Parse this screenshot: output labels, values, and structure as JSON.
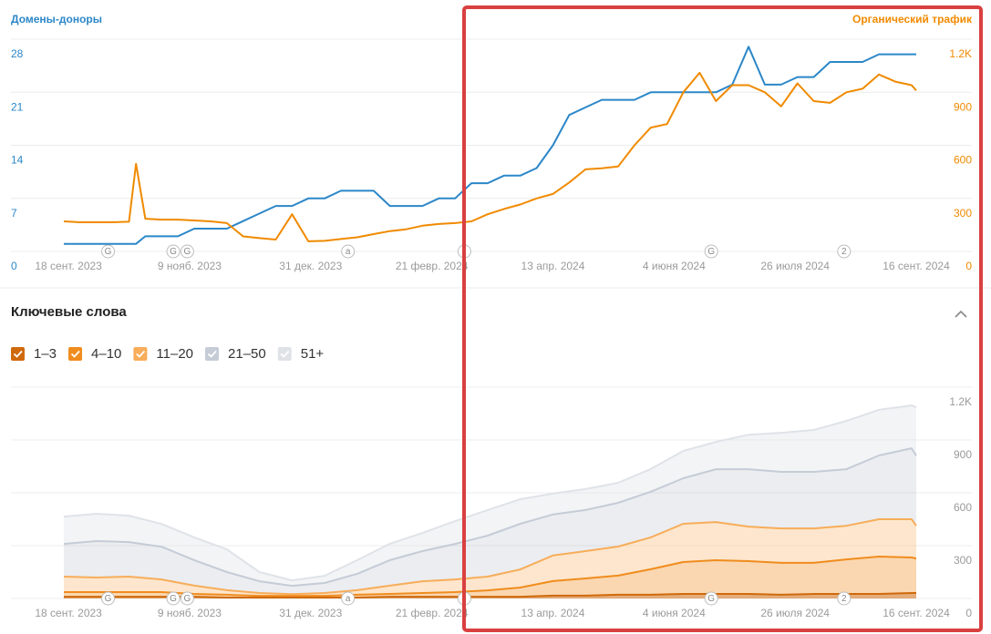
{
  "chart_data": [
    {
      "type": "line",
      "ylabel": "Домены-доноры",
      "y2label": "Органический трафик",
      "x": [
        "2023-09-16",
        "2023-09-23",
        "2023-09-30",
        "2023-10-07",
        "2023-10-14",
        "2023-10-17",
        "2023-10-21",
        "2023-10-28",
        "2023-11-04",
        "2023-11-11",
        "2023-11-18",
        "2023-11-25",
        "2023-12-02",
        "2023-12-09",
        "2023-12-16",
        "2023-12-23",
        "2023-12-30",
        "2024-01-06",
        "2024-01-13",
        "2024-01-20",
        "2024-01-27",
        "2024-02-03",
        "2024-02-10",
        "2024-02-17",
        "2024-02-24",
        "2024-03-02",
        "2024-03-09",
        "2024-03-16",
        "2024-03-23",
        "2024-03-30",
        "2024-04-06",
        "2024-04-13",
        "2024-04-20",
        "2024-04-27",
        "2024-05-04",
        "2024-05-11",
        "2024-05-18",
        "2024-05-25",
        "2024-06-01",
        "2024-06-08",
        "2024-06-15",
        "2024-06-22",
        "2024-06-29",
        "2024-07-06",
        "2024-07-13",
        "2024-07-20",
        "2024-07-27",
        "2024-08-03",
        "2024-08-10",
        "2024-08-17",
        "2024-08-24",
        "2024-08-31",
        "2024-09-07",
        "2024-09-14",
        "2024-09-16"
      ],
      "xlim": [
        "2023-09-16",
        "2024-09-16"
      ],
      "xticks": [
        {
          "value": "2023-09-18",
          "label": "18 сент. 2023"
        },
        {
          "value": "2023-11-09",
          "label": "9 нояб. 2023"
        },
        {
          "value": "2023-12-31",
          "label": "31 дек. 2023"
        },
        {
          "value": "2024-02-21",
          "label": "21 февр. 2024"
        },
        {
          "value": "2024-04-13",
          "label": "13 апр. 2024"
        },
        {
          "value": "2024-06-04",
          "label": "4 июня 2024"
        },
        {
          "value": "2024-07-26",
          "label": "26 июля 2024"
        },
        {
          "value": "2024-09-16",
          "label": "16 сент. 2024"
        }
      ],
      "ylim": [
        0,
        28
      ],
      "yticks": [
        0,
        7,
        14,
        21,
        28
      ],
      "y2lim": [
        0,
        1200
      ],
      "y2ticks": [
        0,
        300,
        600,
        900,
        {
          "value": 1200,
          "label": "1.2K"
        }
      ],
      "grid": true,
      "series": [
        {
          "name": "Домены-доноры",
          "color": "#2b87c8",
          "axis": "y",
          "values": [
            1,
            1,
            1,
            1,
            1,
            1,
            2,
            2,
            2,
            3,
            3,
            3,
            4,
            5,
            6,
            6,
            7,
            7,
            8,
            8,
            8,
            6,
            6,
            6,
            7,
            7,
            9,
            9,
            10,
            10,
            11,
            14,
            18,
            19,
            20,
            20,
            20,
            21,
            21,
            21,
            21,
            21,
            22,
            27,
            22,
            22,
            23,
            23,
            25,
            25,
            25,
            26,
            26,
            26,
            26
          ]
        },
        {
          "name": "Органический трафик",
          "color": "#f08a00",
          "axis": "y2",
          "values": [
            170,
            165,
            165,
            165,
            168,
            495,
            185,
            180,
            180,
            175,
            170,
            160,
            85,
            75,
            67,
            210,
            57,
            60,
            70,
            80,
            98,
            115,
            125,
            145,
            155,
            160,
            170,
            210,
            240,
            265,
            300,
            325,
            390,
            464,
            470,
            480,
            600,
            700,
            720,
            900,
            1010,
            850,
            940,
            940,
            900,
            820,
            950,
            850,
            840,
            900,
            920,
            1000,
            960,
            940,
            910
          ]
        }
      ],
      "events": [
        {
          "x": "2023-10-05",
          "label": "G"
        },
        {
          "x": "2023-11-02",
          "label": "G"
        },
        {
          "x": "2023-11-08",
          "label": "G"
        },
        {
          "x": "2024-01-16",
          "label": "a"
        },
        {
          "x": "2024-03-06"
        },
        {
          "x": "2024-06-20",
          "label": "G"
        },
        {
          "x": "2024-08-16",
          "label": "2"
        }
      ]
    },
    {
      "type": "area",
      "stacked": true,
      "title": "Ключевые слова",
      "x": [
        "2023-09-16",
        "2023-09-30",
        "2023-10-14",
        "2023-10-28",
        "2023-11-11",
        "2023-11-25",
        "2023-12-09",
        "2023-12-23",
        "2024-01-06",
        "2024-01-20",
        "2024-02-03",
        "2024-02-17",
        "2024-03-02",
        "2024-03-16",
        "2024-03-30",
        "2024-04-13",
        "2024-04-27",
        "2024-05-11",
        "2024-05-25",
        "2024-06-08",
        "2024-06-22",
        "2024-07-06",
        "2024-07-20",
        "2024-08-03",
        "2024-08-17",
        "2024-08-31",
        "2024-09-14",
        "2024-09-16"
      ],
      "xlim": [
        "2023-09-16",
        "2024-09-16"
      ],
      "xticks": [
        {
          "value": "2023-09-18",
          "label": "18 сент. 2023"
        },
        {
          "value": "2023-11-09",
          "label": "9 нояб. 2023"
        },
        {
          "value": "2023-12-31",
          "label": "31 дек. 2023"
        },
        {
          "value": "2024-02-21",
          "label": "21 февр. 2024"
        },
        {
          "value": "2024-04-13",
          "label": "13 апр. 2024"
        },
        {
          "value": "2024-06-04",
          "label": "4 июня 2024"
        },
        {
          "value": "2024-07-26",
          "label": "26 июля 2024"
        },
        {
          "value": "2024-09-16",
          "label": "16 сент. 2024"
        }
      ],
      "ylim": [
        0,
        1200
      ],
      "yticks": [
        0,
        300,
        600,
        900,
        {
          "value": 1200,
          "label": "1.2K"
        }
      ],
      "grid": true,
      "series": [
        {
          "name": "1–3",
          "color": "#cf6a0c",
          "values": [
            10,
            10,
            10,
            10,
            10,
            5,
            5,
            5,
            5,
            5,
            10,
            10,
            10,
            10,
            10,
            16,
            16,
            21,
            21,
            26,
            26,
            26,
            21,
            26,
            26,
            26,
            31,
            31
          ]
        },
        {
          "name": "4–10",
          "color": "#f08c1e",
          "values": [
            26,
            26,
            26,
            26,
            16,
            16,
            10,
            10,
            10,
            16,
            16,
            21,
            26,
            36,
            52,
            83,
            98,
            109,
            145,
            181,
            191,
            186,
            181,
            176,
            196,
            212,
            202,
            196
          ]
        },
        {
          "name": "11–20",
          "color": "#f7ad5a",
          "values": [
            88,
            83,
            88,
            72,
            47,
            26,
            16,
            10,
            16,
            26,
            47,
            67,
            72,
            78,
            103,
            145,
            155,
            165,
            181,
            217,
            217,
            196,
            196,
            196,
            191,
            212,
            217,
            186
          ]
        },
        {
          "name": "21–50",
          "color": "#c5ccd6",
          "values": [
            186,
            207,
            196,
            186,
            145,
            103,
            67,
            47,
            57,
            93,
            145,
            171,
            202,
            233,
            259,
            233,
            233,
            248,
            259,
            259,
            300,
            326,
            321,
            321,
            321,
            362,
            403,
            398
          ]
        },
        {
          "name": "51+",
          "color": "#dfe3e8",
          "values": [
            155,
            155,
            150,
            129,
            129,
            129,
            52,
            31,
            41,
            78,
            93,
            103,
            129,
            145,
            140,
            119,
            119,
            114,
            129,
            155,
            155,
            196,
            222,
            238,
            274,
            259,
            243,
            274
          ]
        }
      ]
    }
  ]
}
